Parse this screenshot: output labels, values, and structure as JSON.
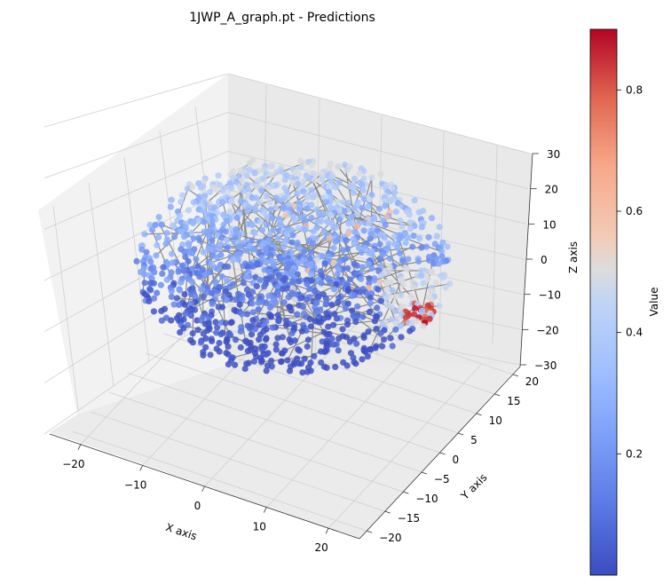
{
  "chart_data": {
    "type": "scatter",
    "title": "1JWP_A_graph.pt - Predictions",
    "xlabel": "X axis",
    "ylabel": "Y axis",
    "zlabel": "Z axis",
    "xticks": [
      "−20",
      "−10",
      "0",
      "10",
      "20"
    ],
    "yticks": [
      "−20",
      "−15",
      "−10",
      "−5",
      "0",
      "5",
      "10",
      "15",
      "20"
    ],
    "zticks": [
      "30",
      "20",
      "10",
      "0",
      "−10",
      "−20",
      "−30"
    ],
    "xlim": [
      -25,
      25
    ],
    "ylim": [
      -22,
      22
    ],
    "zlim": [
      -30,
      30
    ],
    "grid": true,
    "colorbar": {
      "label": "Value",
      "ticks": [
        "0.2",
        "0.4",
        "0.6",
        "0.8"
      ],
      "range": [
        0.0,
        0.9
      ],
      "colormap": "coolwarm"
    },
    "edge_color": "#808080",
    "point_color_low": "#3b4cc0",
    "point_color_mid": "#dddddd",
    "point_color_high": "#b40426",
    "point_cloud_summary": "Dense cluster of several thousand nodes connected by gray edges; most predictions between 0.0 and 0.4, a small high-value region (~0.8–0.9) near the Y-axis edge."
  }
}
